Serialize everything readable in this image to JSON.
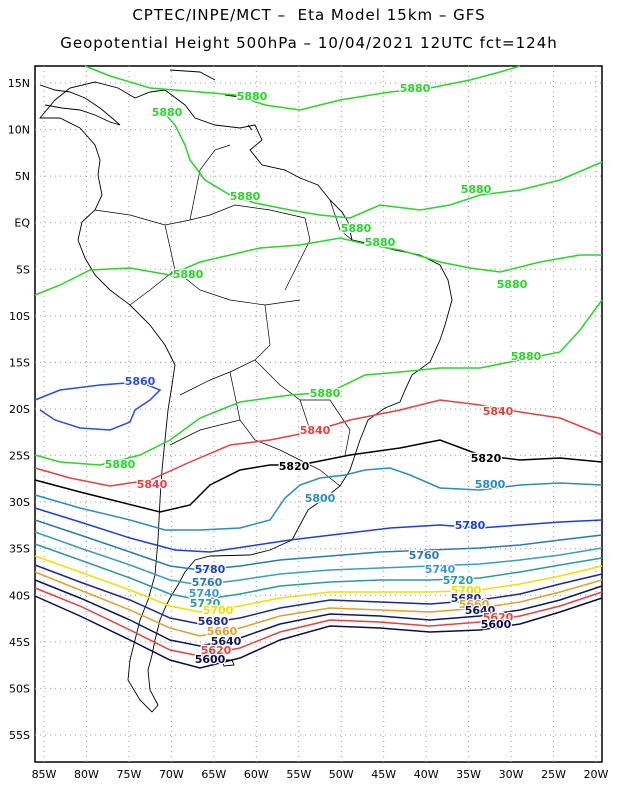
{
  "header": {
    "line1": "CPTEC/INPE/MCT –  Eta Model 15km – GFS",
    "line2": "Geopotential Height 500hPa – 10/04/2021 12UTC fct=124h"
  },
  "axes": {
    "lon_ticks": [
      "85W",
      "80W",
      "75W",
      "70W",
      "65W",
      "60W",
      "55W",
      "50W",
      "45W",
      "40W",
      "35W",
      "30W",
      "25W",
      "20W"
    ],
    "lat_ticks": [
      "15N",
      "10N",
      "5N",
      "EQ",
      "5S",
      "10S",
      "15S",
      "20S",
      "25S",
      "30S",
      "35S",
      "40S",
      "45S",
      "50S",
      "55S"
    ],
    "lon_range": [
      -86,
      -20
    ],
    "lat_range": [
      17,
      -59
    ],
    "grid": "dotted"
  },
  "contours": [
    {
      "value": 5880,
      "color": "#2ad42a",
      "labels": [
        "5880",
        "5880",
        "5880",
        "5880",
        "5880",
        "5880",
        "5880",
        "5880",
        "5880",
        "5880",
        "5880",
        "5880"
      ]
    },
    {
      "value": 5860,
      "color": "#2a4de8",
      "labels": [
        "5860"
      ]
    },
    {
      "value": 5840,
      "color": "#e84040",
      "labels": [
        "5840",
        "5840",
        "5840"
      ]
    },
    {
      "value": 5820,
      "color": "#000000",
      "labels": [
        "5820",
        "5820"
      ]
    },
    {
      "value": 5800,
      "color": "#2a8cc0",
      "labels": [
        "5800",
        "5800"
      ]
    },
    {
      "value": 5780,
      "color": "#1a3fe0",
      "labels": [
        "5780",
        "5780"
      ]
    },
    {
      "value": 5760,
      "color": "#2a7ab0",
      "labels": [
        "5760",
        "5760"
      ]
    },
    {
      "value": 5740,
      "color": "#3a9ad0",
      "labels": [
        "5740",
        "5740"
      ]
    },
    {
      "value": 5720,
      "color": "#2a9aa0",
      "labels": [
        "5720",
        "5720"
      ]
    },
    {
      "value": 5700,
      "color": "#f0e000",
      "labels": [
        "5700",
        "5700"
      ]
    },
    {
      "value": 5680,
      "color": "#1a2a90",
      "labels": [
        "5680",
        "5680"
      ]
    },
    {
      "value": 5660,
      "color": "#e0a030",
      "labels": [
        "5660",
        "5660"
      ]
    },
    {
      "value": 5640,
      "color": "#0a1a60",
      "labels": [
        "5640",
        "5640"
      ]
    },
    {
      "value": 5620,
      "color": "#e84040",
      "labels": [
        "5620",
        "5620"
      ]
    },
    {
      "value": 5600,
      "color": "#0a0a50",
      "labels": [
        "5600",
        "5600"
      ]
    }
  ]
}
